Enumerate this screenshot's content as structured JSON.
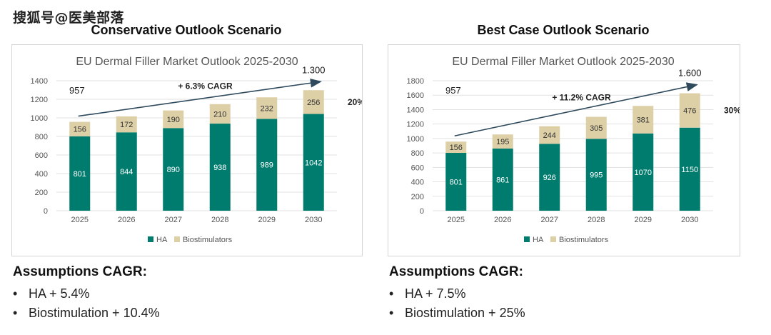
{
  "watermark": "搜狐号@医美部落",
  "colors": {
    "ha": "#007c6e",
    "bio": "#ddcfa6",
    "arrow": "#2e4a5c",
    "grid": "#e1e1e1",
    "axis_text": "#555555"
  },
  "scenarios": [
    {
      "heading": "Conservative Outlook Scenario",
      "assumptions_title": "Assumptions CAGR:",
      "bullets": [
        "HA + 5.4%",
        "Biostimulation + 10.4%"
      ]
    },
    {
      "heading": "Best Case Outlook Scenario",
      "assumptions_title": "Assumptions CAGR:",
      "bullets": [
        "HA + 7.5%",
        "Biostimulation + 25%"
      ]
    }
  ],
  "chart_data": [
    {
      "type": "bar",
      "stacked": true,
      "title": "EU Dermal Filler Market Outlook 2025-2030",
      "categories": [
        "2025",
        "2026",
        "2027",
        "2028",
        "2029",
        "2030"
      ],
      "series": [
        {
          "name": "HA",
          "values": [
            801,
            844,
            890,
            938,
            989,
            1042
          ]
        },
        {
          "name": "Biostimulators",
          "values": [
            156,
            172,
            190,
            210,
            232,
            256
          ]
        }
      ],
      "ylim": [
        0,
        1400
      ],
      "yticks": [
        0,
        200,
        400,
        600,
        800,
        1000,
        1200,
        1400
      ],
      "grid": true,
      "legend": "bottom",
      "annotations": {
        "start_label": "957",
        "end_label": "1.300",
        "cagr_label": "+ 6.3% CAGR",
        "share_label": "20%"
      }
    },
    {
      "type": "bar",
      "stacked": true,
      "title": "EU Dermal Filler Market Outlook 2025-2030",
      "categories": [
        "2025",
        "2026",
        "2027",
        "2028",
        "2029",
        "2030"
      ],
      "series": [
        {
          "name": "HA",
          "values": [
            801,
            861,
            926,
            995,
            1070,
            1150
          ]
        },
        {
          "name": "Biostimulators",
          "values": [
            156,
            195,
            244,
            305,
            381,
            476
          ]
        }
      ],
      "ylim": [
        0,
        1800
      ],
      "yticks": [
        0,
        200,
        400,
        600,
        800,
        1000,
        1200,
        1400,
        1600,
        1800
      ],
      "grid": true,
      "legend": "bottom",
      "annotations": {
        "start_label": "957",
        "end_label": "1.600",
        "cagr_label": "+ 11.2% CAGR",
        "share_label": "30%"
      }
    }
  ]
}
